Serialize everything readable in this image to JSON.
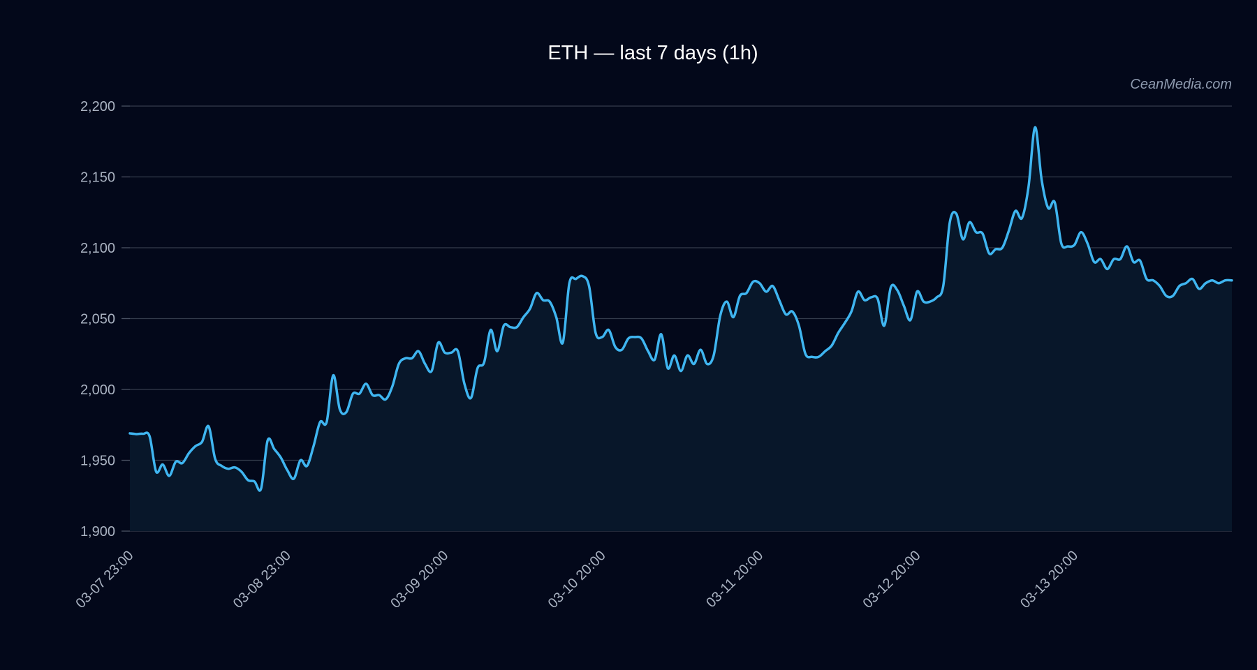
{
  "colors": {
    "background": "#03081a",
    "line": "#3fb5f0",
    "area_fill": "#08172a",
    "grid": "#343c4c",
    "title": "#ffffff",
    "tick_label": "#aab3c2",
    "watermark": "#8f9bb0"
  },
  "watermark": "CeanMedia.com",
  "chart_data": {
    "type": "area",
    "title": "ETH — last 7 days (1h)",
    "xlabel": "",
    "ylabel": "",
    "ylim": [
      1900,
      2200
    ],
    "y_ticks": [
      1900,
      1950,
      2000,
      2050,
      2100,
      2150,
      2200
    ],
    "y_tick_labels": [
      "1,900",
      "1,950",
      "2,000",
      "2,050",
      "2,100",
      "2,150",
      "2,200"
    ],
    "x_tick_labels": [
      "03-07 23:00",
      "03-08 23:00",
      "03-09 20:00",
      "03-10 20:00",
      "03-11 20:00",
      "03-12 20:00",
      "03-13 20:00"
    ],
    "grid": true,
    "legend": false,
    "series": [
      {
        "values": [
          1969,
          1968.5,
          1968.7,
          1967,
          1942,
          1947,
          1939,
          1949,
          1948,
          1955,
          1960,
          1963,
          1974,
          1951,
          1946,
          1944,
          1945,
          1942,
          1936,
          1935,
          1930,
          1964,
          1958,
          1952,
          1943,
          1937,
          1950,
          1946,
          1960,
          1977,
          1977,
          2010,
          1986,
          1984,
          1997,
          1997,
          2004,
          1996,
          1996,
          1993,
          2002,
          2018,
          2022,
          2022,
          2027,
          2018,
          2013,
          2033,
          2026,
          2026,
          2027,
          2004,
          1994,
          2015,
          2019,
          2042,
          2027,
          2045,
          2044,
          2044,
          2051,
          2057,
          2068,
          2063,
          2062,
          2051,
          2033,
          2075,
          2078,
          2080,
          2073,
          2040,
          2037,
          2042,
          2030,
          2028,
          2036,
          2037,
          2036,
          2027,
          2021,
          2039,
          2015,
          2024,
          2013,
          2024,
          2018,
          2028,
          2018,
          2024,
          2052,
          2062,
          2051,
          2066,
          2068,
          2076,
          2075,
          2069,
          2073,
          2063,
          2053,
          2055,
          2045,
          2025,
          2023,
          2023,
          2027,
          2031,
          2040,
          2047,
          2055,
          2069,
          2063,
          2065,
          2064,
          2045,
          2072,
          2070,
          2059,
          2049,
          2069,
          2062,
          2062,
          2065,
          2073,
          2118,
          2124,
          2106,
          2118,
          2111,
          2110,
          2096,
          2099,
          2100,
          2112,
          2126,
          2121,
          2143,
          2185,
          2148,
          2128,
          2132,
          2103,
          2101,
          2102,
          2111,
          2103,
          2090,
          2092,
          2085,
          2092,
          2092,
          2101,
          2090,
          2091,
          2078,
          2077,
          2073,
          2066,
          2066,
          2073,
          2075,
          2078,
          2071,
          2075,
          2077,
          2075,
          2077,
          2077
        ]
      }
    ]
  }
}
